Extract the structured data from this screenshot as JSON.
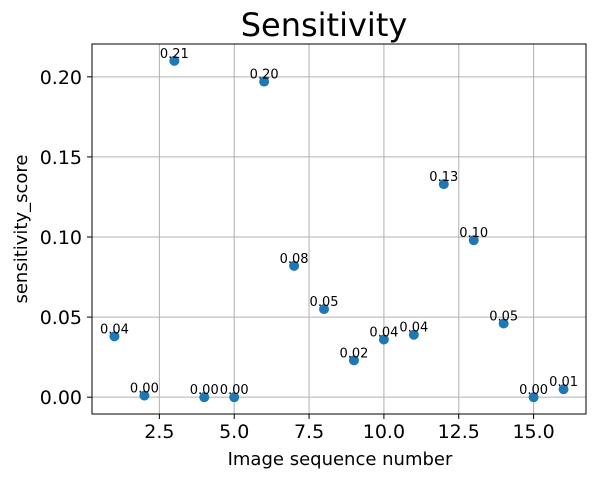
{
  "chart_data": {
    "type": "scatter",
    "title": "Sensitivity",
    "xlabel": "Image sequence number",
    "ylabel": "sensitivity_score",
    "xlim": [
      0.25,
      16.75
    ],
    "ylim": [
      -0.0105,
      0.2205
    ],
    "x_ticks": [
      2.5,
      5.0,
      7.5,
      10.0,
      12.5,
      15.0
    ],
    "x_tick_labels": [
      "2.5",
      "5.0",
      "7.5",
      "10.0",
      "12.5",
      "15.0"
    ],
    "y_ticks": [
      0.0,
      0.05,
      0.1,
      0.15,
      0.2
    ],
    "y_tick_labels": [
      "0.00",
      "0.05",
      "0.10",
      "0.15",
      "0.20"
    ],
    "grid": true,
    "color": "#1f77b4",
    "points": [
      {
        "x": 1,
        "y": 0.038,
        "label": "0.04"
      },
      {
        "x": 2,
        "y": 0.001,
        "label": "0.00"
      },
      {
        "x": 3,
        "y": 0.21,
        "label": "0.21"
      },
      {
        "x": 4,
        "y": 0.0,
        "label": "0.00"
      },
      {
        "x": 5,
        "y": 0.0,
        "label": "0.00"
      },
      {
        "x": 6,
        "y": 0.197,
        "label": "0.20"
      },
      {
        "x": 7,
        "y": 0.082,
        "label": "0.08"
      },
      {
        "x": 8,
        "y": 0.055,
        "label": "0.05"
      },
      {
        "x": 9,
        "y": 0.023,
        "label": "0.02"
      },
      {
        "x": 10,
        "y": 0.036,
        "label": "0.04"
      },
      {
        "x": 11,
        "y": 0.039,
        "label": "0.04"
      },
      {
        "x": 12,
        "y": 0.133,
        "label": "0.13"
      },
      {
        "x": 13,
        "y": 0.098,
        "label": "0.10"
      },
      {
        "x": 14,
        "y": 0.046,
        "label": "0.05"
      },
      {
        "x": 15,
        "y": 0.0,
        "label": "0.00"
      },
      {
        "x": 16,
        "y": 0.005,
        "label": "0.01"
      }
    ]
  }
}
